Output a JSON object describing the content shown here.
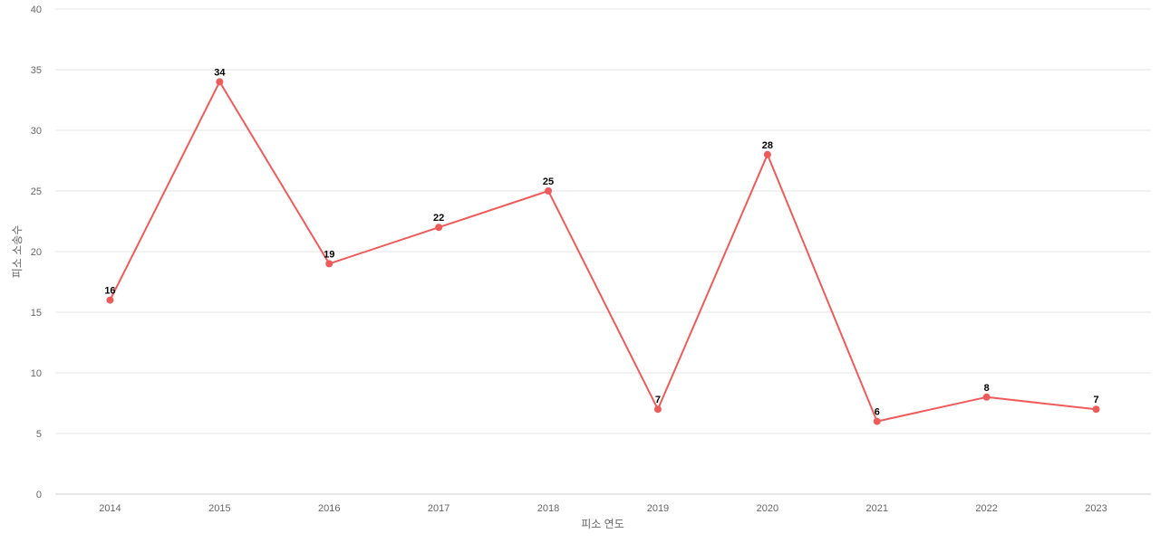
{
  "chart_data": {
    "type": "line",
    "title": "",
    "xlabel": "피소 연도",
    "ylabel": "피소 소송수",
    "categories": [
      "2014",
      "2015",
      "2016",
      "2017",
      "2018",
      "2019",
      "2020",
      "2021",
      "2022",
      "2023"
    ],
    "series": [
      {
        "values": [
          16,
          34,
          19,
          22,
          25,
          7,
          28,
          6,
          8,
          7
        ],
        "color": "#ef5b5b"
      }
    ],
    "ylim": [
      0,
      40
    ],
    "yticks": [
      0,
      5,
      10,
      15,
      20,
      25,
      30,
      35,
      40
    ],
    "grid": true,
    "legend": "none",
    "data_labels": true
  }
}
